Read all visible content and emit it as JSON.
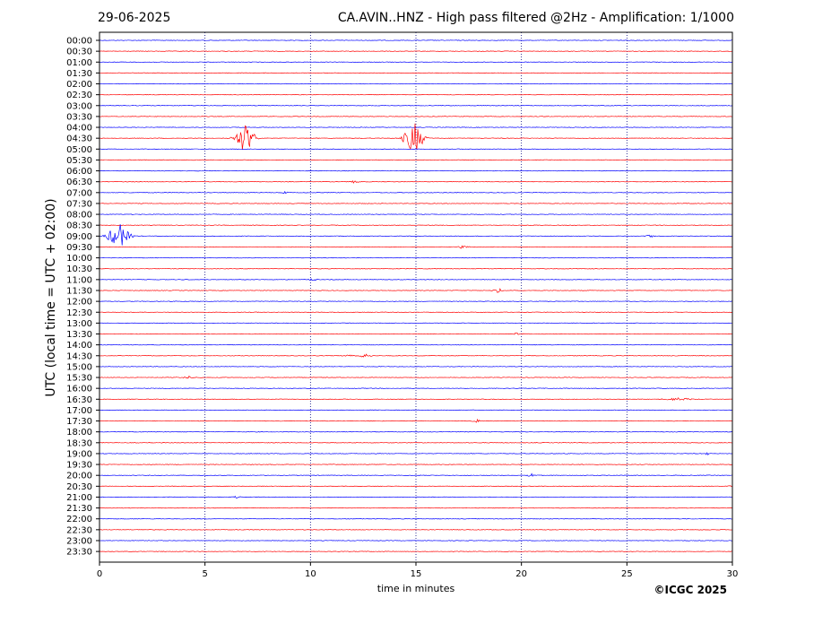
{
  "header": {
    "date": "29-06-2025",
    "title": "CA.AVIN..HNZ - High pass filtered @2Hz - Amplification: 1/1000"
  },
  "footer": {
    "copyright": "©ICGC 2025"
  },
  "chart_data": {
    "type": "line",
    "title": "CA.AVIN..HNZ - High pass filtered @2Hz - Amplification: 1/1000",
    "xlabel": "time in minutes",
    "ylabel": "UTC (local time = UTC + 02:00)",
    "xlim": [
      0,
      30
    ],
    "x_ticks": [
      0,
      5,
      10,
      15,
      20,
      25,
      30
    ],
    "grid": {
      "x": "dotted-vertical",
      "y": false
    },
    "row_labels": [
      "00:00",
      "00:30",
      "01:00",
      "01:30",
      "02:00",
      "02:30",
      "03:00",
      "03:30",
      "04:00",
      "04:30",
      "05:00",
      "05:30",
      "06:00",
      "06:30",
      "07:00",
      "07:30",
      "08:00",
      "08:30",
      "09:00",
      "09:30",
      "10:00",
      "10:30",
      "11:00",
      "11:30",
      "12:00",
      "12:30",
      "13:00",
      "13:30",
      "14:00",
      "14:30",
      "15:00",
      "15:30",
      "16:00",
      "16:30",
      "17:00",
      "17:30",
      "18:00",
      "18:30",
      "19:00",
      "19:30",
      "20:00",
      "20:30",
      "21:00",
      "21:30",
      "22:00",
      "22:30",
      "23:00",
      "23:30"
    ],
    "trace_colors": [
      "#0000ff",
      "#ff0000"
    ],
    "events": [
      {
        "row": "04:30",
        "minute": 6.9,
        "amplitude": 18,
        "duration": 0.9,
        "color": "#0000ff"
      },
      {
        "row": "04:30",
        "minute": 14.9,
        "amplitude": 20,
        "duration": 0.9,
        "color": "#0000ff"
      },
      {
        "row": "09:00",
        "minute": 0.9,
        "amplitude": 16,
        "duration": 1.0,
        "color": "#ff0000"
      },
      {
        "row": "11:30",
        "minute": 18.9,
        "amplitude": 2.5,
        "duration": 0.6,
        "color": "#0000ff"
      },
      {
        "row": "14:30",
        "minute": 12.6,
        "amplitude": 2.5,
        "duration": 0.6,
        "color": "#0000ff"
      },
      {
        "row": "16:30",
        "minute": 27.5,
        "amplitude": 2,
        "duration": 1.5,
        "color": "#0000ff"
      },
      {
        "row": "20:00",
        "minute": 20.5,
        "amplitude": 2,
        "duration": 0.6,
        "color": "#ff0000"
      },
      {
        "row": "19:00",
        "minute": 28.8,
        "amplitude": 4,
        "duration": 0.1,
        "color": "#ff0000"
      },
      {
        "row": "09:00",
        "minute": 26.1,
        "amplitude": 2,
        "duration": 0.4,
        "color": "#ff0000"
      },
      {
        "row": "06:30",
        "minute": 12.1,
        "amplitude": 2,
        "duration": 0.4,
        "color": "#0000ff"
      },
      {
        "row": "07:00",
        "minute": 8.8,
        "amplitude": 2,
        "duration": 0.3,
        "color": "#ff0000"
      },
      {
        "row": "09:30",
        "minute": 17.2,
        "amplitude": 2,
        "duration": 0.5,
        "color": "#0000ff"
      },
      {
        "row": "17:30",
        "minute": 17.9,
        "amplitude": 2,
        "duration": 0.5,
        "color": "#0000ff"
      },
      {
        "row": "21:00",
        "minute": 6.5,
        "amplitude": 2,
        "duration": 0.3,
        "color": "#ff0000"
      },
      {
        "row": "20:30",
        "minute": 29.9,
        "amplitude": 2,
        "duration": 0.2,
        "color": "#0000ff"
      },
      {
        "row": "11:00",
        "minute": 10.1,
        "amplitude": 1.5,
        "duration": 0.6,
        "color": "#ff0000"
      },
      {
        "row": "14:30",
        "minute": 11.8,
        "amplitude": 1.5,
        "duration": 0.6,
        "color": "#0000ff"
      },
      {
        "row": "15:30",
        "minute": 4.2,
        "amplitude": 1.5,
        "duration": 0.8,
        "color": "#0000ff"
      },
      {
        "row": "13:30",
        "minute": 19.8,
        "amplitude": 1.5,
        "duration": 0.6,
        "color": "#0000ff"
      }
    ]
  }
}
